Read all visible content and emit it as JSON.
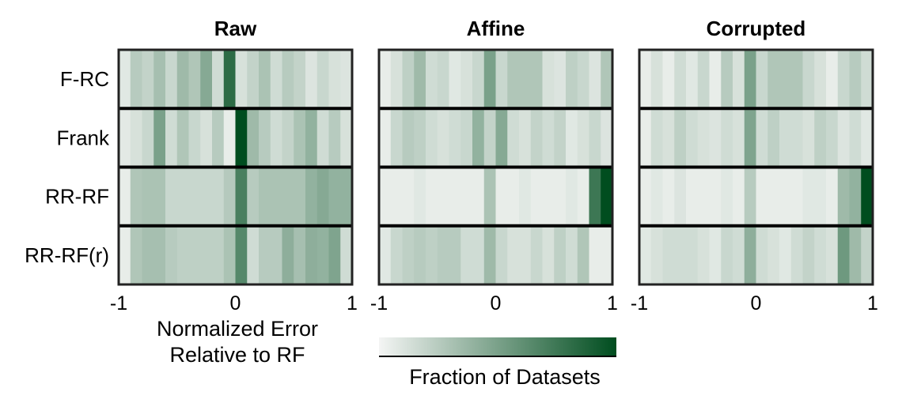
{
  "colors": {
    "low": "#f4f5f4",
    "high": "#004d1f",
    "frame": "#222222",
    "separator": "#000000"
  },
  "chart_data": {
    "type": "heatmap",
    "panels": [
      "Raw",
      "Affine",
      "Corrupted"
    ],
    "rows": [
      "F-RC",
      "Frank",
      "RR-RF",
      "RR-RF(r)"
    ],
    "x_ticks": [
      "-1",
      "0",
      "1"
    ],
    "xlim": [
      -1,
      1
    ],
    "bins": 20,
    "xlabel_lines": [
      "Normalized Error",
      "Relative to RF"
    ],
    "colorbar_label": "Fraction of Datasets",
    "values": [
      [
        [
          0.08,
          0.25,
          0.2,
          0.32,
          0.18,
          0.35,
          0.28,
          0.45,
          0.15,
          0.82,
          0.12,
          0.2,
          0.3,
          0.15,
          0.25,
          0.2,
          0.1,
          0.18,
          0.12,
          0.1
        ],
        [
          0.07,
          0.12,
          0.18,
          0.5,
          0.15,
          0.28,
          0.18,
          0.12,
          0.25,
          0.05,
          1.0,
          0.35,
          0.25,
          0.15,
          0.2,
          0.3,
          0.4,
          0.15,
          0.25,
          0.12
        ],
        [
          0.05,
          0.28,
          0.3,
          0.3,
          0.18,
          0.18,
          0.18,
          0.18,
          0.18,
          0.26,
          0.7,
          0.25,
          0.3,
          0.3,
          0.3,
          0.3,
          0.4,
          0.45,
          0.4,
          0.4
        ],
        [
          0.05,
          0.28,
          0.32,
          0.32,
          0.25,
          0.22,
          0.22,
          0.22,
          0.22,
          0.3,
          0.65,
          0.15,
          0.25,
          0.25,
          0.42,
          0.32,
          0.42,
          0.4,
          0.48,
          0.15
        ]
      ],
      [
        [
          0.05,
          0.12,
          0.22,
          0.35,
          0.15,
          0.18,
          0.08,
          0.12,
          0.18,
          0.5,
          0.18,
          0.28,
          0.28,
          0.28,
          0.12,
          0.1,
          0.22,
          0.18,
          0.1,
          0.28
        ],
        [
          0.05,
          0.18,
          0.25,
          0.22,
          0.15,
          0.12,
          0.15,
          0.18,
          0.4,
          0.2,
          0.45,
          0.15,
          0.12,
          0.2,
          0.15,
          0.2,
          0.08,
          0.12,
          0.18,
          0.1
        ],
        [
          0.05,
          0.05,
          0.05,
          0.08,
          0.05,
          0.05,
          0.05,
          0.05,
          0.05,
          0.3,
          0.05,
          0.05,
          0.08,
          0.05,
          0.05,
          0.05,
          0.08,
          0.05,
          0.75,
          1.0
        ],
        [
          0.08,
          0.18,
          0.22,
          0.25,
          0.22,
          0.25,
          0.25,
          0.15,
          0.15,
          0.35,
          0.18,
          0.12,
          0.12,
          0.18,
          0.12,
          0.22,
          0.15,
          0.28,
          0.05,
          0.05
        ]
      ],
      [
        [
          0.05,
          0.12,
          0.05,
          0.15,
          0.08,
          0.18,
          0.05,
          0.25,
          0.12,
          0.5,
          0.18,
          0.28,
          0.28,
          0.28,
          0.18,
          0.12,
          0.05,
          0.18,
          0.25,
          0.15
        ],
        [
          0.05,
          0.15,
          0.12,
          0.22,
          0.15,
          0.12,
          0.1,
          0.15,
          0.12,
          0.48,
          0.15,
          0.22,
          0.15,
          0.15,
          0.12,
          0.22,
          0.18,
          0.1,
          0.15,
          0.08
        ],
        [
          0.05,
          0.08,
          0.05,
          0.1,
          0.05,
          0.05,
          0.05,
          0.08,
          0.05,
          0.25,
          0.05,
          0.05,
          0.05,
          0.05,
          0.08,
          0.08,
          0.05,
          0.35,
          0.4,
          1.0
        ],
        [
          0.08,
          0.12,
          0.15,
          0.15,
          0.15,
          0.12,
          0.08,
          0.18,
          0.15,
          0.42,
          0.15,
          0.12,
          0.08,
          0.15,
          0.2,
          0.15,
          0.12,
          0.55,
          0.35,
          0.2
        ]
      ]
    ]
  }
}
